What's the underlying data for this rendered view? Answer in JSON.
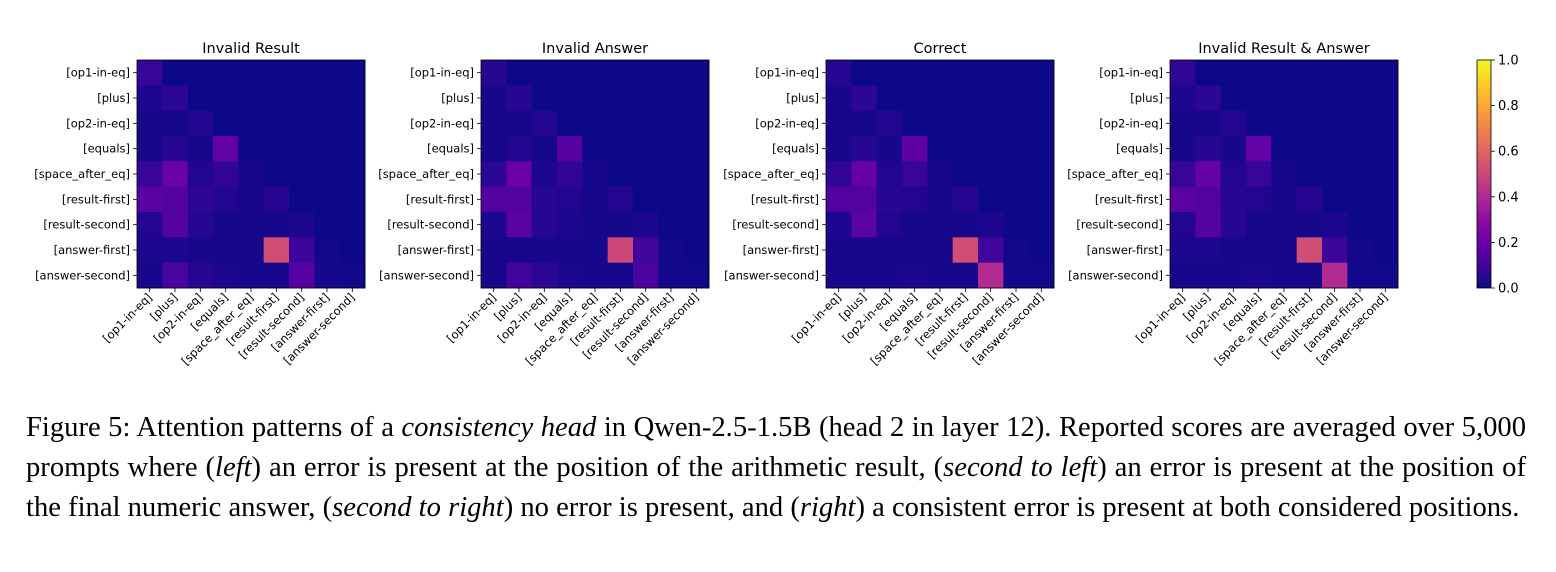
{
  "chart_data": [
    {
      "type": "heatmap",
      "title": "Invalid Result",
      "rows": [
        "[op1-in-eq]",
        "[plus]",
        "[op2-in-eq]",
        "[equals]",
        "[space_after_eq]",
        "[result-first]",
        "[result-second]",
        "[answer-first]",
        "[answer-second]"
      ],
      "columns": [
        "[op1-in-eq]",
        "[plus]",
        "[op2-in-eq]",
        "[equals]",
        "[space_after_eq]",
        "[result-first]",
        "[result-second]",
        "[answer-first]",
        "[answer-second]"
      ],
      "values": [
        [
          0.08,
          0,
          0,
          0,
          0,
          0,
          0,
          0,
          0
        ],
        [
          0.03,
          0.06,
          0,
          0,
          0,
          0,
          0,
          0,
          0
        ],
        [
          0.02,
          0.02,
          0.04,
          0,
          0,
          0,
          0,
          0,
          0
        ],
        [
          0.02,
          0.05,
          0.02,
          0.18,
          0,
          0,
          0,
          0,
          0
        ],
        [
          0.08,
          0.2,
          0.04,
          0.07,
          0.02,
          0,
          0,
          0,
          0
        ],
        [
          0.16,
          0.14,
          0.06,
          0.04,
          0.02,
          0.05,
          0,
          0,
          0
        ],
        [
          0.04,
          0.15,
          0.05,
          0.02,
          0.02,
          0.02,
          0.03,
          0,
          0
        ],
        [
          0.03,
          0.03,
          0.02,
          0.02,
          0.02,
          0.52,
          0.09,
          0.01,
          0
        ],
        [
          0.02,
          0.12,
          0.05,
          0.03,
          0.02,
          0.02,
          0.15,
          0.02,
          0.01
        ]
      ],
      "colorbar": {
        "min": 0.0,
        "max": 1.0,
        "colormap": "plasma"
      }
    },
    {
      "type": "heatmap",
      "title": "Invalid Answer",
      "rows": [
        "[op1-in-eq]",
        "[plus]",
        "[op2-in-eq]",
        "[equals]",
        "[space_after_eq]",
        "[result-first]",
        "[result-second]",
        "[answer-first]",
        "[answer-second]"
      ],
      "columns": [
        "[op1-in-eq]",
        "[plus]",
        "[op2-in-eq]",
        "[equals]",
        "[space_after_eq]",
        "[result-first]",
        "[result-second]",
        "[answer-first]",
        "[answer-second]"
      ],
      "values": [
        [
          0.05,
          0,
          0,
          0,
          0,
          0,
          0,
          0,
          0
        ],
        [
          0.02,
          0.05,
          0,
          0,
          0,
          0,
          0,
          0,
          0
        ],
        [
          0.02,
          0.02,
          0.04,
          0,
          0,
          0,
          0,
          0,
          0
        ],
        [
          0.02,
          0.04,
          0.02,
          0.15,
          0,
          0,
          0,
          0,
          0
        ],
        [
          0.06,
          0.2,
          0.03,
          0.07,
          0.02,
          0,
          0,
          0,
          0
        ],
        [
          0.14,
          0.14,
          0.05,
          0.04,
          0.02,
          0.04,
          0,
          0,
          0
        ],
        [
          0.03,
          0.16,
          0.05,
          0.03,
          0.02,
          0.02,
          0.03,
          0,
          0
        ],
        [
          0.02,
          0.02,
          0.02,
          0.02,
          0.02,
          0.5,
          0.1,
          0.01,
          0
        ],
        [
          0.02,
          0.1,
          0.06,
          0.03,
          0.02,
          0.02,
          0.12,
          0.01,
          0.01
        ]
      ],
      "colorbar": {
        "min": 0.0,
        "max": 1.0,
        "colormap": "plasma"
      }
    },
    {
      "type": "heatmap",
      "title": "Correct",
      "rows": [
        "[op1-in-eq]",
        "[plus]",
        "[op2-in-eq]",
        "[equals]",
        "[space_after_eq]",
        "[result-first]",
        "[result-second]",
        "[answer-first]",
        "[answer-second]"
      ],
      "columns": [
        "[op1-in-eq]",
        "[plus]",
        "[op2-in-eq]",
        "[equals]",
        "[space_after_eq]",
        "[result-first]",
        "[result-second]",
        "[answer-first]",
        "[answer-second]"
      ],
      "values": [
        [
          0.05,
          0,
          0,
          0,
          0,
          0,
          0,
          0,
          0
        ],
        [
          0.02,
          0.06,
          0,
          0,
          0,
          0,
          0,
          0,
          0
        ],
        [
          0.02,
          0.02,
          0.04,
          0,
          0,
          0,
          0,
          0,
          0
        ],
        [
          0.02,
          0.05,
          0.02,
          0.17,
          0,
          0,
          0,
          0,
          0
        ],
        [
          0.07,
          0.19,
          0.04,
          0.08,
          0.02,
          0,
          0,
          0,
          0
        ],
        [
          0.14,
          0.14,
          0.05,
          0.04,
          0.02,
          0.05,
          0,
          0,
          0
        ],
        [
          0.03,
          0.16,
          0.04,
          0.02,
          0.02,
          0.02,
          0.03,
          0,
          0
        ],
        [
          0.02,
          0.02,
          0.02,
          0.02,
          0.02,
          0.52,
          0.1,
          0.01,
          0
        ],
        [
          0.02,
          0.02,
          0.02,
          0.03,
          0.02,
          0.02,
          0.4,
          0.01,
          0.01
        ]
      ],
      "colorbar": {
        "min": 0.0,
        "max": 1.0,
        "colormap": "plasma"
      }
    },
    {
      "type": "heatmap",
      "title": "Invalid Result & Answer",
      "rows": [
        "[op1-in-eq]",
        "[plus]",
        "[op2-in-eq]",
        "[equals]",
        "[space_after_eq]",
        "[result-first]",
        "[result-second]",
        "[answer-first]",
        "[answer-second]"
      ],
      "columns": [
        "[op1-in-eq]",
        "[plus]",
        "[op2-in-eq]",
        "[equals]",
        "[space_after_eq]",
        "[result-first]",
        "[result-second]",
        "[answer-first]",
        "[answer-second]"
      ],
      "values": [
        [
          0.07,
          0,
          0,
          0,
          0,
          0,
          0,
          0,
          0
        ],
        [
          0.03,
          0.06,
          0,
          0,
          0,
          0,
          0,
          0,
          0
        ],
        [
          0.02,
          0.02,
          0.04,
          0,
          0,
          0,
          0,
          0,
          0
        ],
        [
          0.02,
          0.05,
          0.02,
          0.18,
          0,
          0,
          0,
          0,
          0
        ],
        [
          0.08,
          0.19,
          0.04,
          0.08,
          0.02,
          0,
          0,
          0,
          0
        ],
        [
          0.16,
          0.14,
          0.05,
          0.04,
          0.02,
          0.05,
          0,
          0,
          0
        ],
        [
          0.04,
          0.15,
          0.05,
          0.02,
          0.02,
          0.02,
          0.03,
          0,
          0
        ],
        [
          0.03,
          0.03,
          0.02,
          0.02,
          0.02,
          0.52,
          0.09,
          0.01,
          0
        ],
        [
          0.02,
          0.02,
          0.02,
          0.03,
          0.02,
          0.02,
          0.4,
          0.01,
          0.01
        ]
      ],
      "colorbar": {
        "min": 0.0,
        "max": 1.0,
        "colormap": "plasma"
      }
    }
  ],
  "colorbar_ticks": [
    "0.0",
    "0.2",
    "0.4",
    "0.6",
    "0.8",
    "1.0"
  ],
  "caption": {
    "label": "Figure 5:",
    "s1": "Attention patterns of a ",
    "em1": "consistency head",
    "s2": " in Qwen-2.5-1.5B (head 2 in layer 12). Reported scores are averaged over 5,000 prompts where (",
    "em2": "left",
    "s3": ") an error is present at the position of the arithmetic result, (",
    "em3": "second to left",
    "s4": ") an error is present at the position of the final numeric answer, (",
    "em4": "second to right",
    "s5": ") no error is present, and (",
    "em5": "right",
    "s6": ") a consistent error is present at both considered positions."
  }
}
